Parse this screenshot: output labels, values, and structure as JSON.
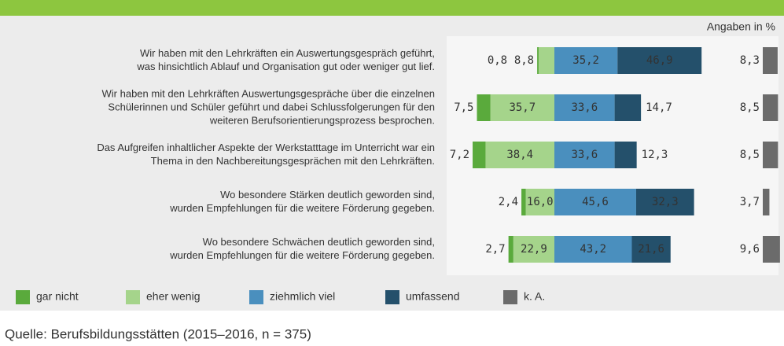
{
  "chart_data": {
    "type": "bar",
    "orientation": "horizontal",
    "stacked": "diverging",
    "unit_note": "Angaben in %",
    "source": "Quelle: Berufsbildungsstätten (2015–2016, n = 375)",
    "categories": [
      [
        "Wir haben mit den Lehrkräften ein Auswertungsgespräch geführt,",
        "was hinsichtlich Ablauf und Organisation gut oder weniger gut lief."
      ],
      [
        "Wir haben mit den Lehrkräften Auswertungsgespräche über die einzelnen",
        "Schülerinnen und Schüler geführt und dabei Schlussfolgerungen für den",
        "weiteren Berufsorientierungsprozess besprochen."
      ],
      [
        "Das Aufgreifen inhaltlicher Aspekte der Werkstatttage im Unterricht war ein",
        "Thema in den Nachbereitungsgesprächen mit den Lehrkräften."
      ],
      [
        "Wo besondere Stärken deutlich geworden sind,",
        "wurden Empfehlungen für die weitere Förderung gegeben."
      ],
      [
        "Wo besondere Schwächen deutlich geworden sind,",
        "wurden Empfehlungen für die weitere Förderung gegeben."
      ]
    ],
    "series": [
      {
        "name": "gar nicht",
        "color": "#5aaa3c",
        "side": "left",
        "values": [
          0.8,
          7.5,
          7.2,
          2.4,
          2.7
        ],
        "value_labels": [
          "0,8",
          "7,5",
          "7,2",
          "2,4",
          "2,7"
        ]
      },
      {
        "name": "eher wenig",
        "color": "#a5d48b",
        "side": "left",
        "values": [
          8.8,
          35.7,
          38.4,
          16.0,
          22.9
        ],
        "value_labels": [
          "8,8",
          "35,7",
          "38,4",
          "16,0",
          "22,9"
        ]
      },
      {
        "name": "ziehmlich viel",
        "color": "#4a8fbe",
        "side": "right",
        "values": [
          35.2,
          33.6,
          33.6,
          45.6,
          43.2
        ],
        "value_labels": [
          "35,2",
          "33,6",
          "33,6",
          "45,6",
          "43,2"
        ]
      },
      {
        "name": "umfassend",
        "color": "#24506b",
        "side": "right",
        "values": [
          46.9,
          14.7,
          12.3,
          32.3,
          21.6
        ],
        "value_labels": [
          "46,9",
          "14,7",
          "12,3",
          "32,3",
          "21,6"
        ]
      },
      {
        "name": "k. A.",
        "color": "#6b6b6b",
        "side": "separate",
        "values": [
          8.3,
          8.5,
          8.5,
          3.7,
          9.6
        ],
        "value_labels": [
          "8,3",
          "8,5",
          "8,5",
          "3,7",
          "9,6"
        ]
      }
    ]
  }
}
